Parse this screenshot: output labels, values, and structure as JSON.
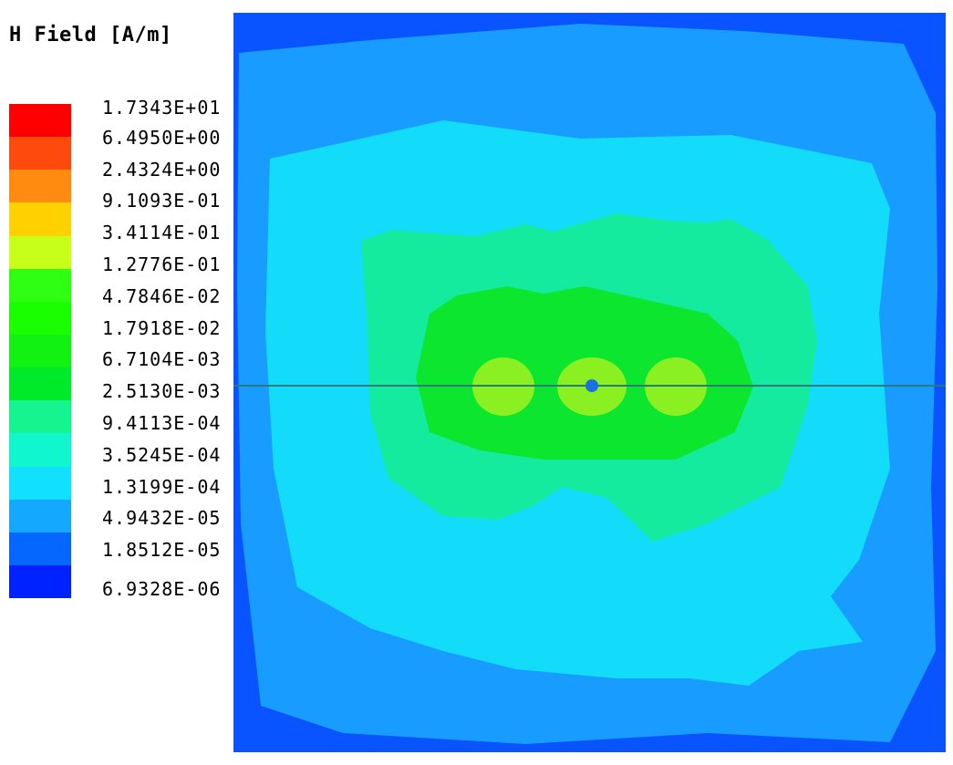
{
  "legend": {
    "title": "H Field [A/m]",
    "levels": [
      "1.7343E+01",
      "6.4950E+00",
      "2.4324E+00",
      "9.1093E-01",
      "3.4114E-01",
      "1.2776E-01",
      "4.7846E-02",
      "1.7918E-02",
      "6.7104E-03",
      "2.5130E-03",
      "9.4113E-04",
      "3.5245E-04",
      "1.3199E-04",
      "4.9432E-05",
      "1.8512E-05",
      "6.9328E-06"
    ],
    "colors": [
      "#ff0000",
      "#ff4a0d",
      "#ff8c11",
      "#ffd100",
      "#c7ff1a",
      "#2fff13",
      "#1aff00",
      "#12f212",
      "#00ea2a",
      "#14f58f",
      "#10f6cf",
      "#11e0ff",
      "#15a8ff",
      "#0667ff",
      "#0022ff"
    ]
  },
  "plot": {
    "colors": {
      "outer": "#0a54ff",
      "level2": "#199cff",
      "level3": "#12dcf9",
      "level4": "#14eb9f",
      "level5": "#0de62f",
      "core": "#8bf022",
      "source_dot": "#1b6fe0",
      "line": "#2a7a7a"
    }
  }
}
